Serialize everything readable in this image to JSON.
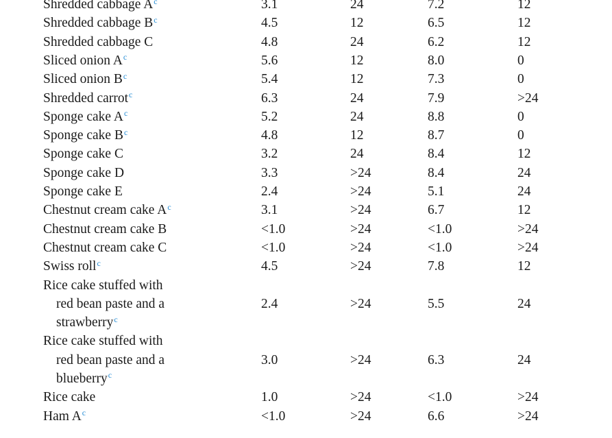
{
  "rows": [
    {
      "lines": [
        "Shredded cabbage A"
      ],
      "mark": "c",
      "v1": "3.1",
      "v2": "24",
      "v3": "7.2",
      "v4": "12"
    },
    {
      "lines": [
        "Shredded cabbage B"
      ],
      "mark": "c",
      "v1": "4.5",
      "v2": "12",
      "v3": "6.5",
      "v4": "12"
    },
    {
      "lines": [
        "Shredded cabbage C"
      ],
      "mark": "",
      "v1": "4.8",
      "v2": "24",
      "v3": "6.2",
      "v4": "12"
    },
    {
      "lines": [
        "Sliced onion A"
      ],
      "mark": "c",
      "v1": "5.6",
      "v2": "12",
      "v3": "8.0",
      "v4": "0"
    },
    {
      "lines": [
        "Sliced onion B"
      ],
      "mark": "c",
      "v1": "5.4",
      "v2": "12",
      "v3": "7.3",
      "v4": "0"
    },
    {
      "lines": [
        "Shredded carrot"
      ],
      "mark": "c",
      "v1": "6.3",
      "v2": "24",
      "v3": "7.9",
      "v4": ">24"
    },
    {
      "lines": [
        "Sponge cake A"
      ],
      "mark": "c",
      "v1": "5.2",
      "v2": "24",
      "v3": "8.8",
      "v4": "0"
    },
    {
      "lines": [
        "Sponge cake B"
      ],
      "mark": "c",
      "v1": "4.8",
      "v2": "12",
      "v3": "8.7",
      "v4": "0"
    },
    {
      "lines": [
        "Sponge cake C"
      ],
      "mark": "",
      "v1": "3.2",
      "v2": "24",
      "v3": "8.4",
      "v4": "12"
    },
    {
      "lines": [
        "Sponge cake D"
      ],
      "mark": "",
      "v1": "3.3",
      "v2": ">24",
      "v3": "8.4",
      "v4": "24"
    },
    {
      "lines": [
        "Sponge cake E"
      ],
      "mark": "",
      "v1": "2.4",
      "v2": ">24",
      "v3": "5.1",
      "v4": "24"
    },
    {
      "lines": [
        "Chestnut cream cake A"
      ],
      "mark": "c",
      "v1": "3.1",
      "v2": ">24",
      "v3": "6.7",
      "v4": "12"
    },
    {
      "lines": [
        "Chestnut cream cake B"
      ],
      "mark": "",
      "v1": "<1.0",
      "v2": ">24",
      "v3": "<1.0",
      "v4": ">24"
    },
    {
      "lines": [
        "Chestnut cream cake C"
      ],
      "mark": "",
      "v1": "<1.0",
      "v2": ">24",
      "v3": "<1.0",
      "v4": ">24"
    },
    {
      "lines": [
        "Swiss roll"
      ],
      "mark": "c",
      "v1": "4.5",
      "v2": ">24",
      "v3": "7.8",
      "v4": "12"
    },
    {
      "lines": [
        "Rice cake stuffed with",
        "red bean paste and a",
        "strawberry"
      ],
      "mark": "c",
      "v1": "2.4",
      "v2": ">24",
      "v3": "5.5",
      "v4": "24"
    },
    {
      "lines": [
        "Rice cake stuffed with",
        "red bean paste and a",
        "blueberry"
      ],
      "mark": "c",
      "v1": "3.0",
      "v2": ">24",
      "v3": "6.3",
      "v4": "24"
    },
    {
      "lines": [
        "Rice cake"
      ],
      "mark": "",
      "v1": "1.0",
      "v2": ">24",
      "v3": "<1.0",
      "v4": ">24"
    },
    {
      "lines": [
        "Ham A"
      ],
      "mark": "c",
      "v1": "<1.0",
      "v2": ">24",
      "v3": "6.6",
      "v4": ">24"
    }
  ],
  "footnote_mark_color": "#2a8fd6"
}
